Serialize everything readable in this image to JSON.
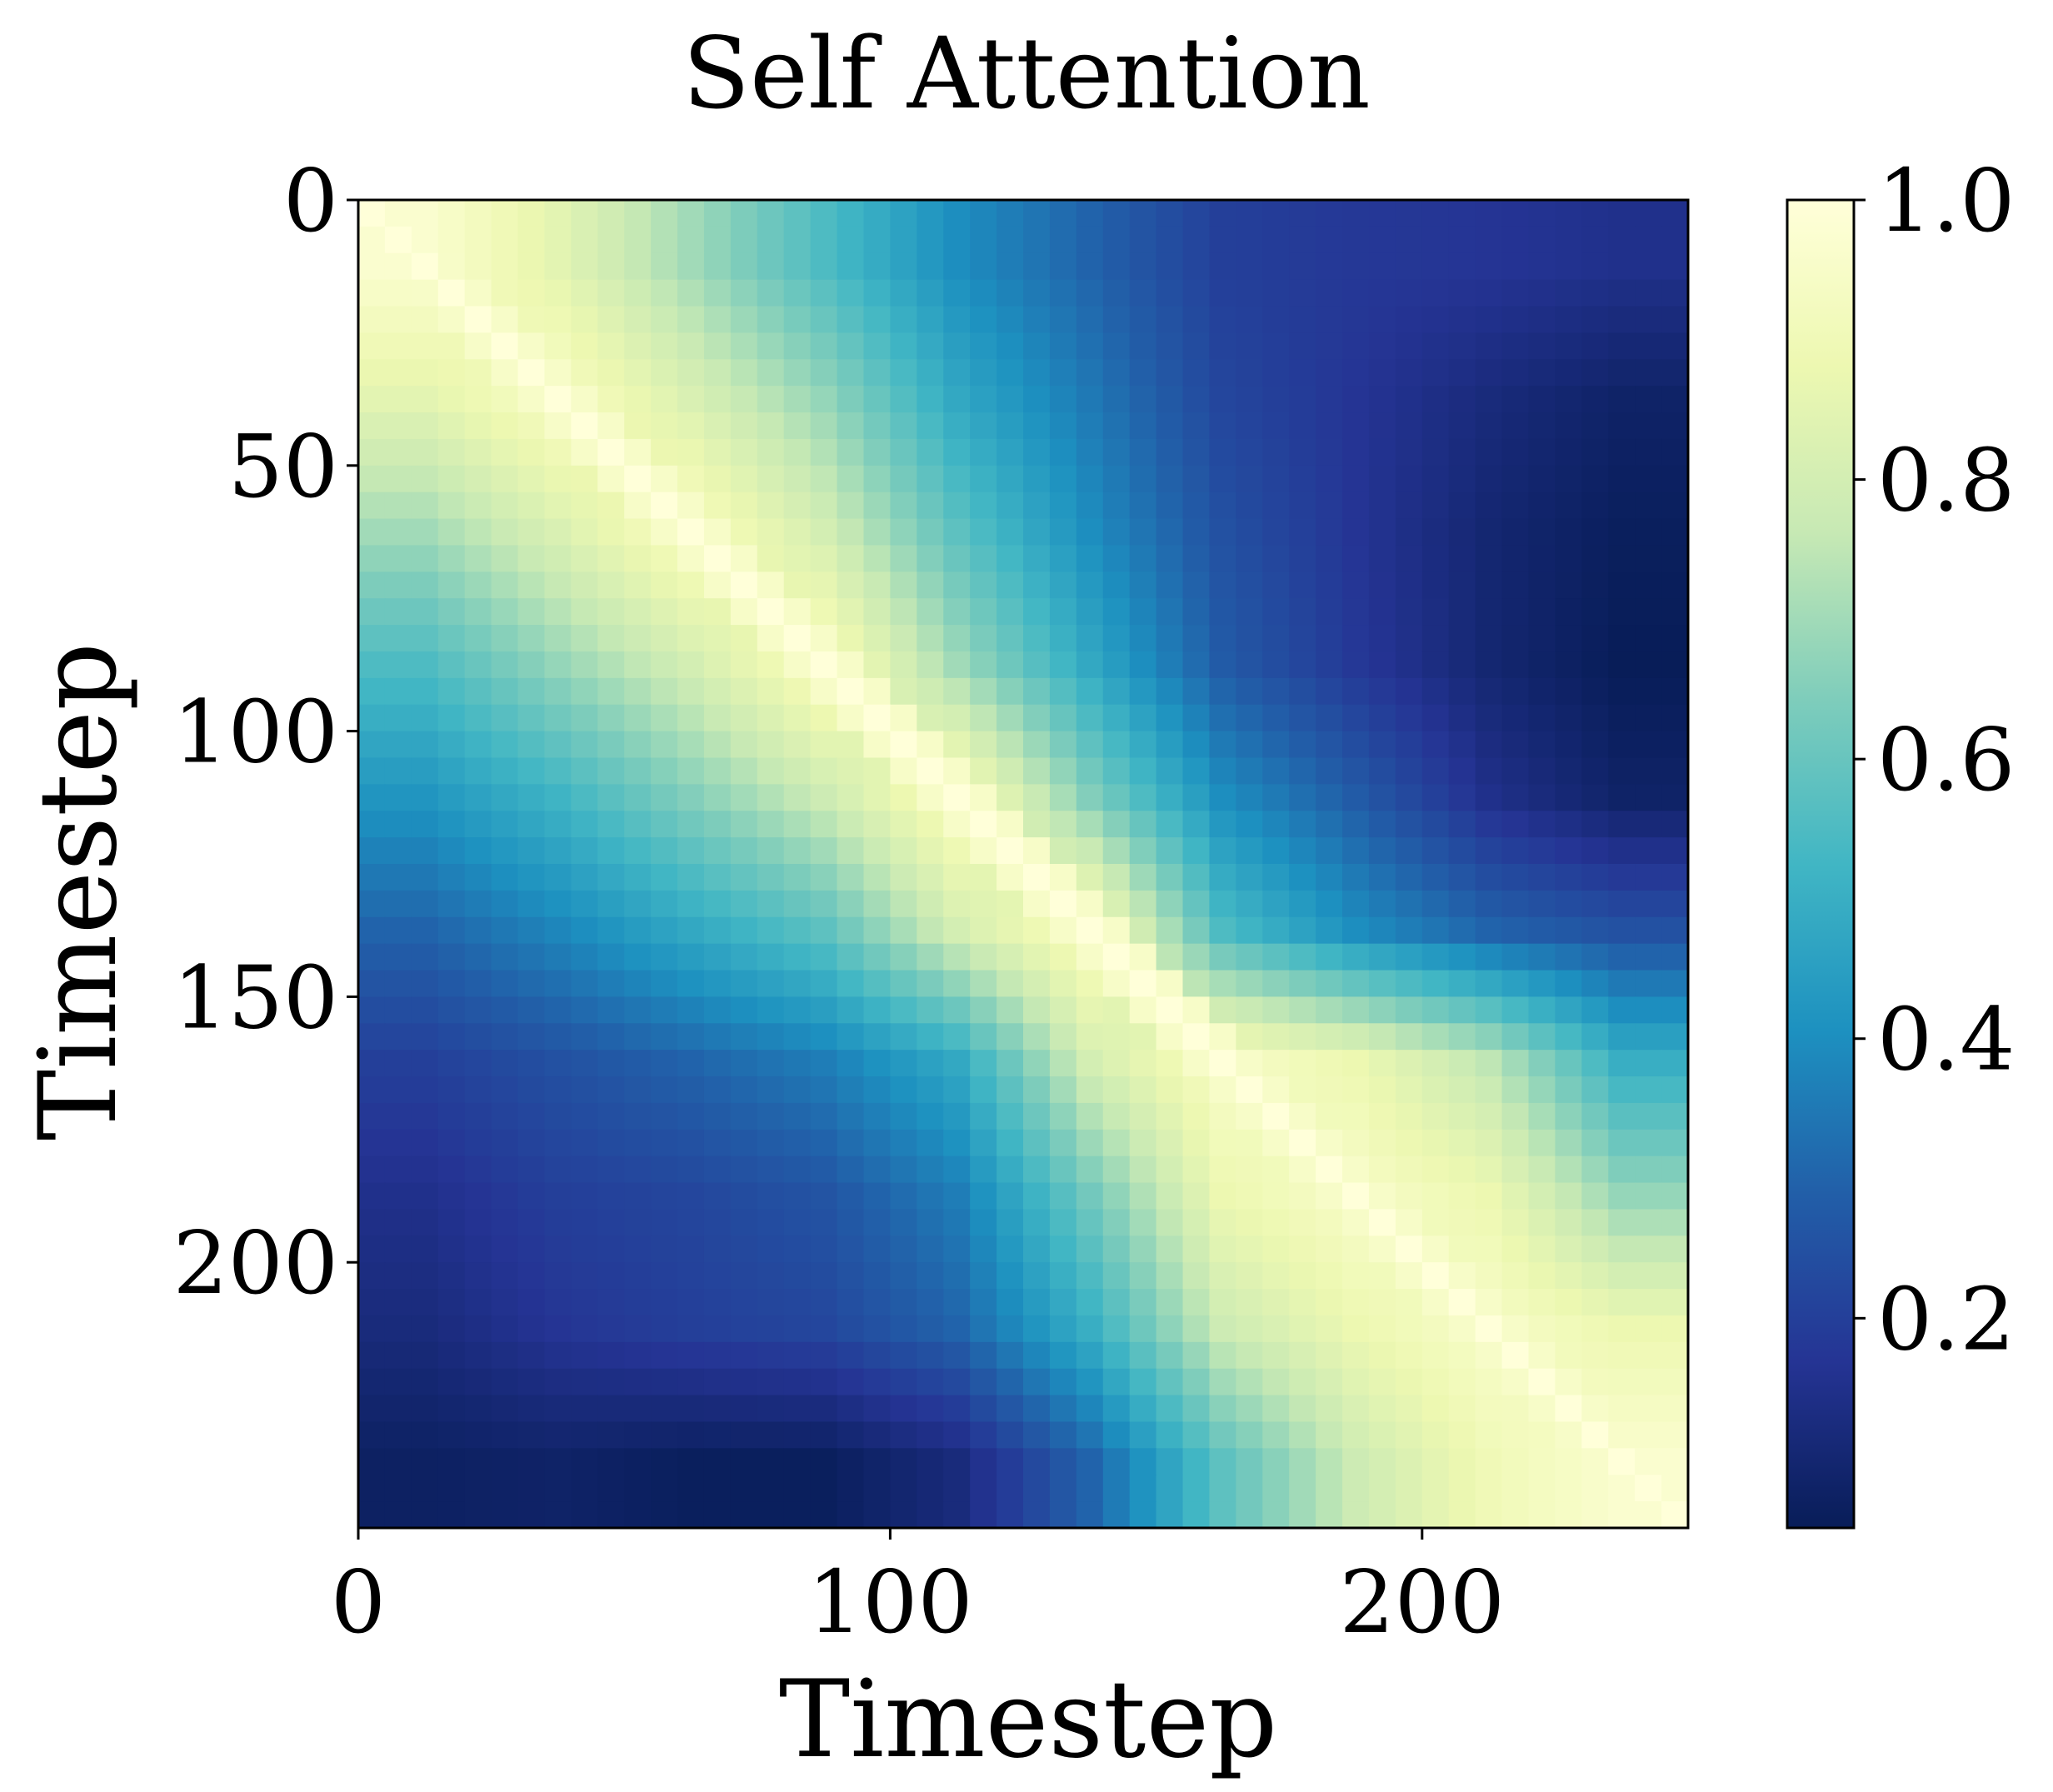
{
  "chart_data": {
    "type": "heatmap",
    "title": "Self Attention",
    "xlabel": "Timestep",
    "ylabel": "Timestep",
    "n": 250,
    "xlim": [
      0,
      250
    ],
    "ylim": [
      0,
      250
    ],
    "y_inverted": true,
    "xticks": [
      0,
      100,
      200
    ],
    "xtick_labels": [
      "0",
      "100",
      "200"
    ],
    "yticks": [
      0,
      50,
      100,
      150,
      200
    ],
    "ytick_labels": [
      "0",
      "50",
      "100",
      "150",
      "200"
    ],
    "colormap": "YlGnBu_r",
    "colorbar": {
      "range": [
        0.05,
        1.0
      ],
      "ticks": [
        0.2,
        0.4,
        0.6,
        0.8,
        1.0
      ],
      "tick_labels": [
        "0.2",
        "0.4",
        "0.6",
        "0.8",
        "1.0"
      ]
    },
    "colors": [
      "#081d58",
      "#253494",
      "#225ea8",
      "#1d91c0",
      "#41b6c4",
      "#7fcdbb",
      "#c7e9b4",
      "#edf8b1",
      "#ffffd9"
    ],
    "matrix_blocks": {
      "block_size": 25,
      "rows_cols": [
        "0-25",
        "25-50",
        "50-75",
        "75-100",
        "100-125",
        "125-150",
        "150-175",
        "175-200",
        "200-225",
        "225-250"
      ],
      "values": [
        [
          0.97,
          0.85,
          0.7,
          0.55,
          0.4,
          0.3,
          0.2,
          0.18,
          0.17,
          0.15
        ],
        [
          0.85,
          0.95,
          0.82,
          0.68,
          0.48,
          0.35,
          0.22,
          0.17,
          0.12,
          0.08
        ],
        [
          0.7,
          0.82,
          0.95,
          0.8,
          0.58,
          0.4,
          0.25,
          0.17,
          0.1,
          0.06
        ],
        [
          0.55,
          0.68,
          0.8,
          0.95,
          0.7,
          0.48,
          0.28,
          0.18,
          0.1,
          0.05
        ],
        [
          0.42,
          0.52,
          0.65,
          0.78,
          0.95,
          0.65,
          0.4,
          0.28,
          0.15,
          0.08
        ],
        [
          0.3,
          0.38,
          0.48,
          0.58,
          0.8,
          0.95,
          0.55,
          0.4,
          0.3,
          0.25
        ],
        [
          0.2,
          0.25,
          0.3,
          0.36,
          0.48,
          0.8,
          0.95,
          0.88,
          0.75,
          0.5
        ],
        [
          0.15,
          0.2,
          0.22,
          0.26,
          0.36,
          0.62,
          0.88,
          0.95,
          0.88,
          0.68
        ],
        [
          0.12,
          0.17,
          0.2,
          0.22,
          0.3,
          0.5,
          0.78,
          0.88,
          0.95,
          0.88
        ],
        [
          0.07,
          0.08,
          0.06,
          0.06,
          0.12,
          0.3,
          0.58,
          0.78,
          0.9,
          0.97
        ]
      ]
    }
  }
}
